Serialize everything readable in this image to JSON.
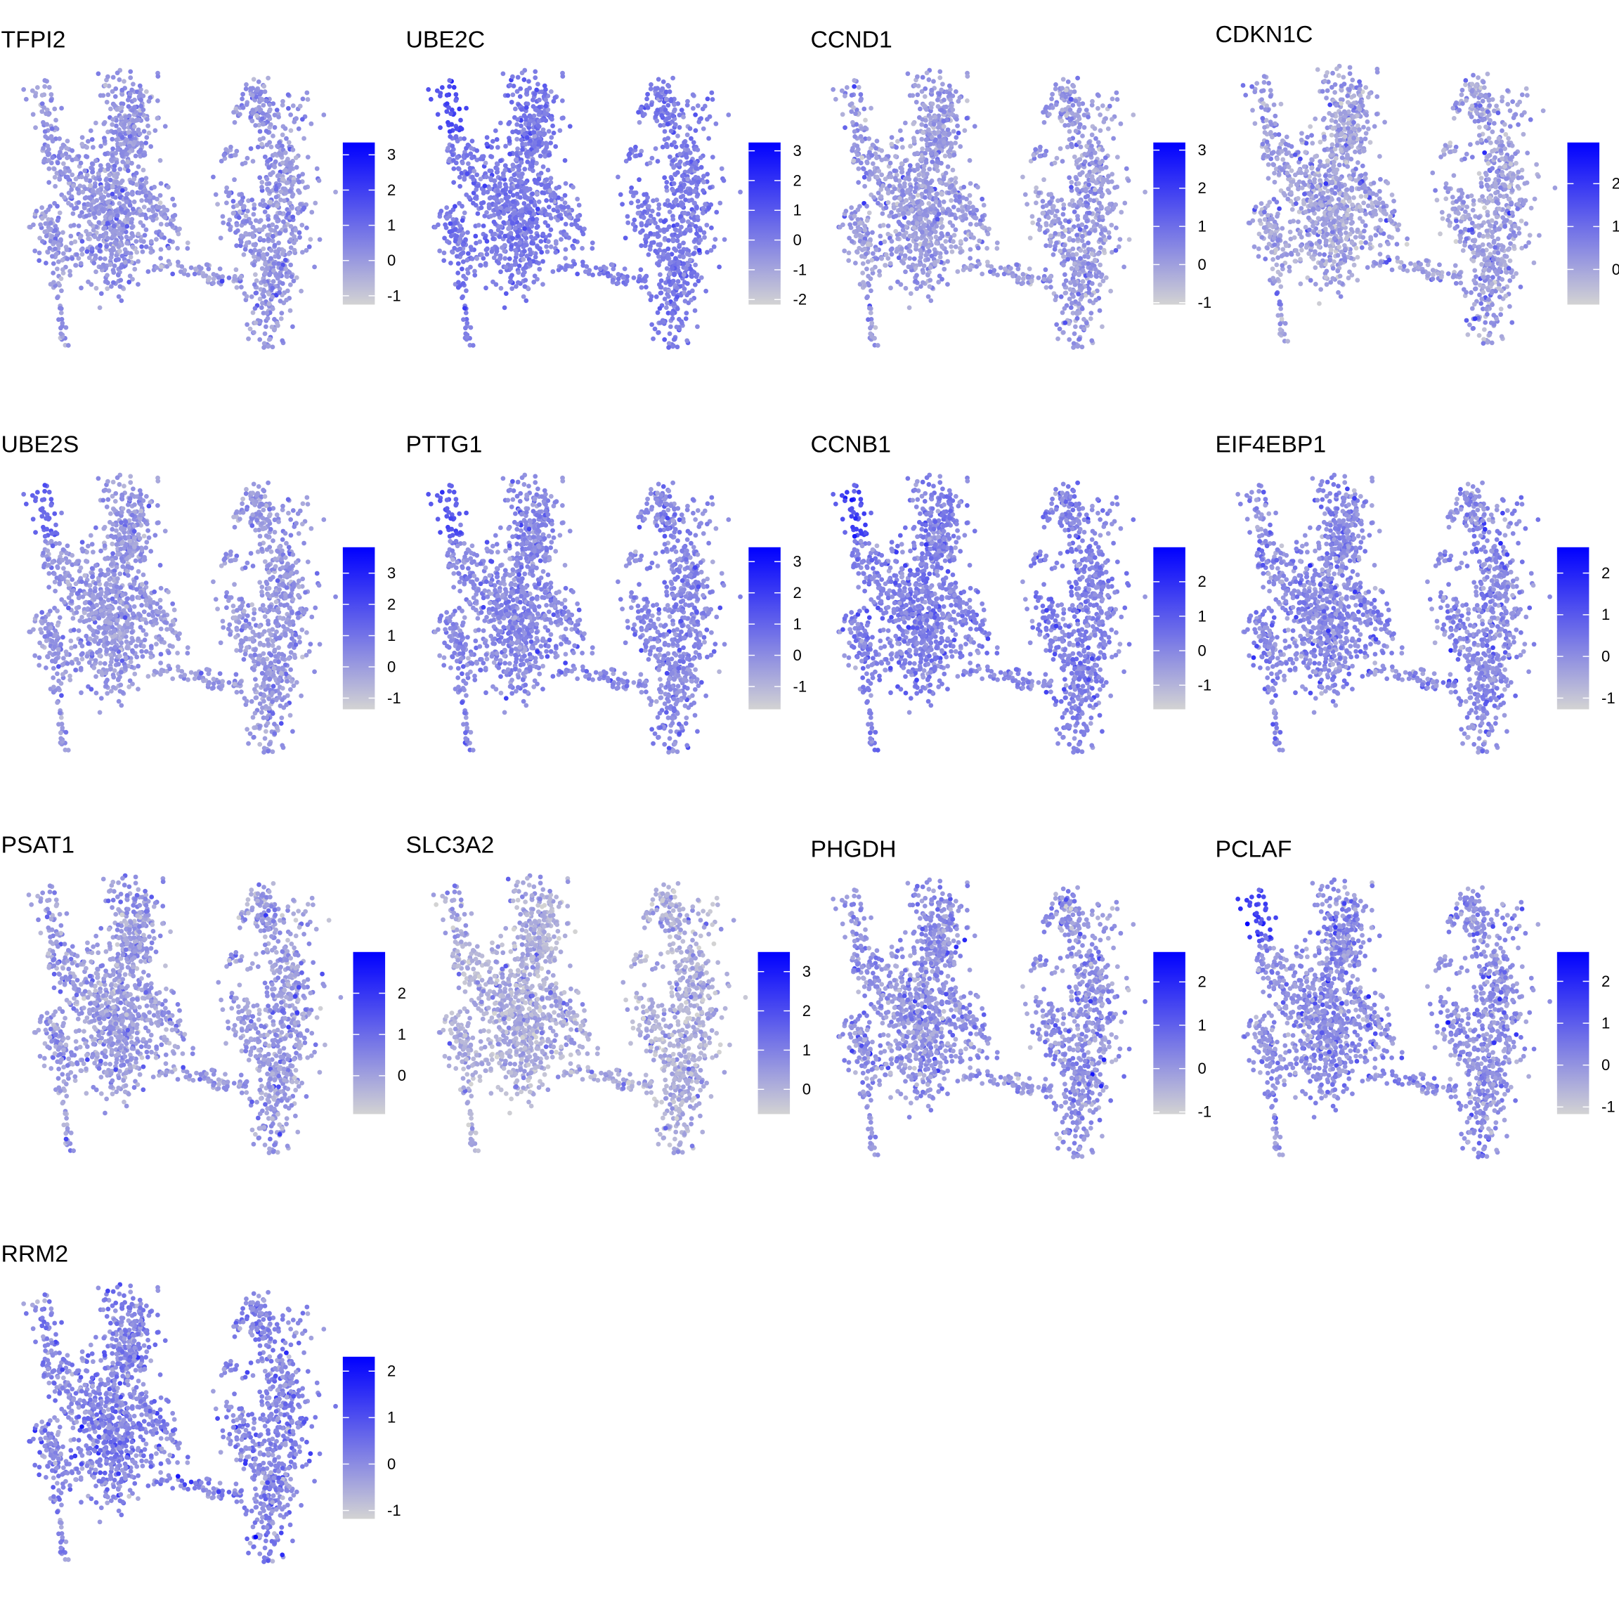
{
  "chart_data": {
    "type": "scatter",
    "plot_kind": "feature expression embedding (grid of panels)",
    "grid": false,
    "axes_visible": false,
    "color_scale": {
      "low": "#d3d3d3",
      "high": "#0000ff"
    },
    "legend_placement": "right of each panel",
    "panels": [
      {
        "title": "TFPI2",
        "ticks": [
          -1,
          0,
          1,
          2,
          3
        ],
        "limits": [
          -1.25,
          3.35
        ]
      },
      {
        "title": "UBE2C",
        "ticks": [
          -2,
          -1,
          0,
          1,
          2,
          3
        ],
        "limits": [
          -2.17,
          3.28
        ]
      },
      {
        "title": "CCND1",
        "ticks": [
          -1,
          0,
          1,
          2,
          3
        ],
        "limits": [
          -1.05,
          3.2
        ]
      },
      {
        "title": "CDKN1C",
        "ticks": [
          0,
          1,
          2
        ],
        "limits": [
          -0.82,
          2.96
        ]
      },
      {
        "title": "UBE2S",
        "ticks": [
          -1,
          0,
          1,
          2,
          3
        ],
        "limits": [
          -1.36,
          3.83
        ]
      },
      {
        "title": "PTTG1",
        "ticks": [
          -1,
          0,
          1,
          2,
          3
        ],
        "limits": [
          -1.73,
          3.46
        ]
      },
      {
        "title": "CCNB1",
        "ticks": [
          -1,
          0,
          1,
          2
        ],
        "limits": [
          -1.7,
          3.0
        ]
      },
      {
        "title": "EIF4EBP1",
        "ticks": [
          -1,
          0,
          1,
          2
        ],
        "limits": [
          -1.27,
          2.62
        ]
      },
      {
        "title": "PSAT1",
        "ticks": [
          0,
          1,
          2
        ],
        "limits": [
          -0.93,
          3.0
        ]
      },
      {
        "title": "SLC3A2",
        "ticks": [
          0,
          1,
          2,
          3
        ],
        "limits": [
          -0.63,
          3.5
        ]
      },
      {
        "title": "PHGDH",
        "ticks": [
          -1,
          0,
          1,
          2
        ],
        "limits": [
          -1.05,
          2.69
        ]
      },
      {
        "title": "PCLAF",
        "ticks": [
          -1,
          0,
          1,
          2
        ],
        "limits": [
          -1.17,
          2.7
        ]
      },
      {
        "title": "RRM2",
        "ticks": [
          -1,
          0,
          1,
          2
        ],
        "limits": [
          -1.18,
          2.31
        ]
      }
    ]
  }
}
